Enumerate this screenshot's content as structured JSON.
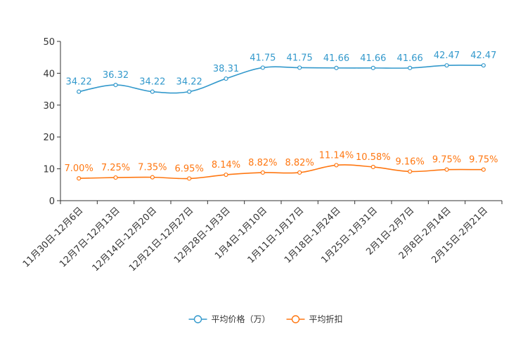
{
  "chart_data": {
    "type": "line",
    "title": "",
    "xlabel": "",
    "ylabel": "",
    "ylim": [
      0,
      50
    ],
    "yticks": [
      0,
      10,
      20,
      30,
      40,
      50
    ],
    "grid": false,
    "legend_position": "bottom-center",
    "categories": [
      "11月30日-12月6日",
      "12月7日-12月13日",
      "12月14日-12月20日",
      "12月21日-12月27日",
      "12月28日-1月3日",
      "1月4日-1月10日",
      "1月11日-1月17日",
      "1月18日-1月24日",
      "1月25日-1月31日",
      "2月1日-2月7日",
      "2月8日-2月14日",
      "2月15日-2月21日"
    ],
    "series": [
      {
        "name": "平均价格（万）",
        "color": "#3399cc",
        "values": [
          34.22,
          36.32,
          34.22,
          34.22,
          38.31,
          41.75,
          41.75,
          41.66,
          41.66,
          41.66,
          42.47,
          42.47
        ],
        "labels": [
          "34.22",
          "36.32",
          "34.22",
          "34.22",
          "38.31",
          "41.75",
          "41.75",
          "41.66",
          "41.66",
          "41.66",
          "42.47",
          "42.47"
        ]
      },
      {
        "name": "平均折扣",
        "color": "#ff7711",
        "values": [
          7.0,
          7.25,
          7.35,
          6.95,
          8.14,
          8.82,
          8.82,
          11.14,
          10.58,
          9.16,
          9.75,
          9.75
        ],
        "labels": [
          "7.00%",
          "7.25%",
          "7.35%",
          "6.95%",
          "8.14%",
          "8.82%",
          "8.82%",
          "11.14%",
          "10.58%",
          "9.16%",
          "9.75%",
          "9.75%"
        ]
      }
    ]
  }
}
